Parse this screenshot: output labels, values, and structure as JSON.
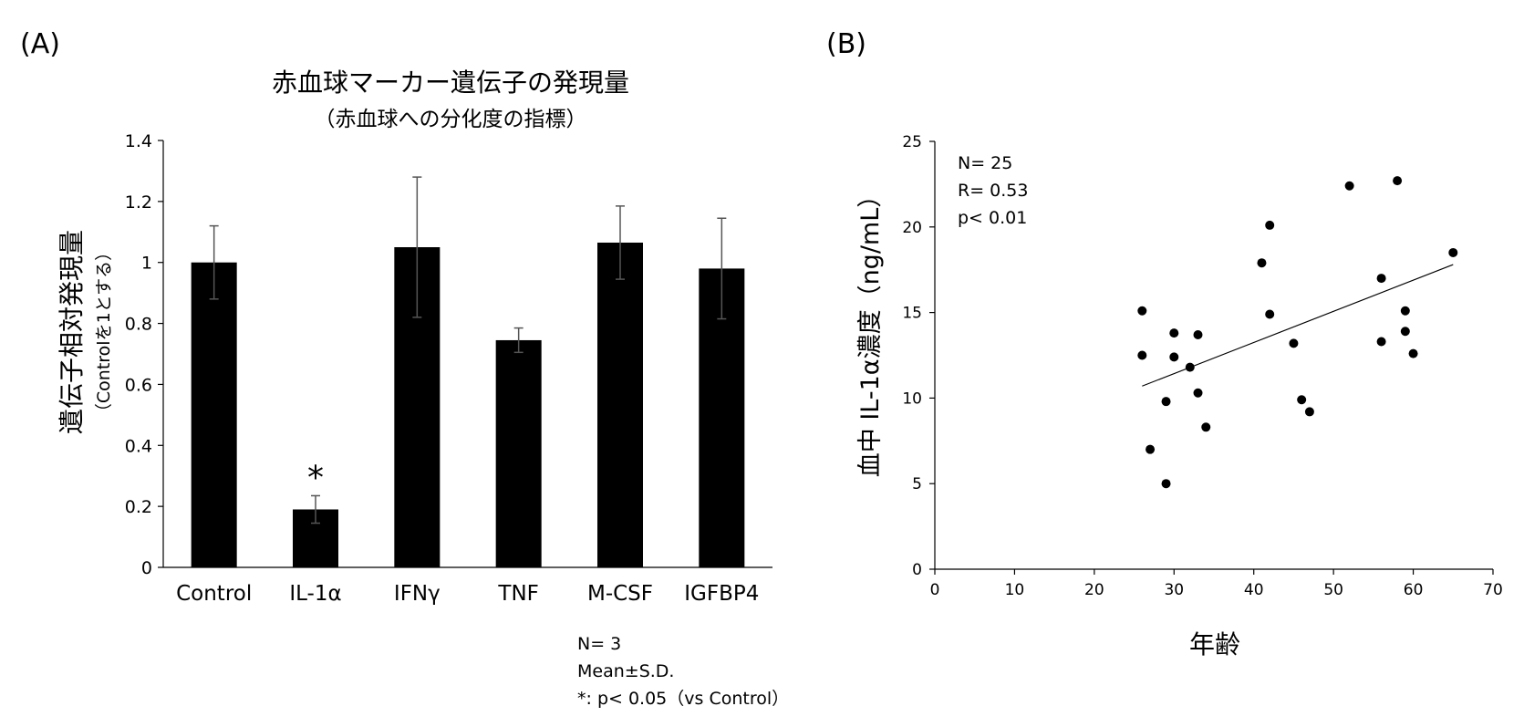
{
  "chart_data": [
    {
      "panel_label": "(A)",
      "type": "bar",
      "title": "赤血球マーカー遺伝子の発現量",
      "subtitle": "（赤血球への分化度の指標）",
      "ylabel": "遺伝子相対発現量",
      "ylabel_sub": "（Controlを1とする）",
      "xlabel": "",
      "ylim": [
        0,
        1.4
      ],
      "yticks": [
        0,
        0.2,
        0.4,
        0.6,
        0.8,
        1,
        1.2,
        1.4
      ],
      "ytick_labels": [
        "0",
        "0.2",
        "0.4",
        "0.6",
        "0.8",
        "1",
        "1.2",
        "1.4"
      ],
      "categories": [
        "Control",
        "IL-1α",
        "IFNγ",
        "TNF",
        "M-CSF",
        "IGFBP4"
      ],
      "values": [
        1.0,
        0.19,
        1.05,
        0.745,
        1.065,
        0.98
      ],
      "errors": [
        0.12,
        0.045,
        0.23,
        0.04,
        0.12,
        0.165
      ],
      "significance": [
        "",
        "*",
        "",
        "",
        "",
        ""
      ],
      "notes": [
        "N= 3",
        "Mean±S.D.",
        "*: p< 0.05（vs Control）"
      ]
    },
    {
      "panel_label": "(B)",
      "type": "scatter",
      "xlabel": "年齢",
      "ylabel": "血中 IL-1α濃度（ng/mL）",
      "xlim": [
        0,
        70
      ],
      "ylim": [
        0,
        25
      ],
      "xticks": [
        0,
        10,
        20,
        30,
        40,
        50,
        60,
        70
      ],
      "xtick_labels": [
        "0",
        "10",
        "20",
        "30",
        "40",
        "50",
        "60",
        "70"
      ],
      "yticks": [
        0,
        5,
        10,
        15,
        20,
        25
      ],
      "ytick_labels": [
        "0",
        "5",
        "10",
        "15",
        "20",
        "25"
      ],
      "points": [
        [
          26,
          15.1
        ],
        [
          26,
          12.5
        ],
        [
          27,
          7.0
        ],
        [
          29,
          5.0
        ],
        [
          29,
          9.8
        ],
        [
          30,
          13.8
        ],
        [
          30,
          12.4
        ],
        [
          32,
          11.8
        ],
        [
          33,
          13.7
        ],
        [
          33,
          10.3
        ],
        [
          34,
          8.3
        ],
        [
          41,
          17.9
        ],
        [
          42,
          20.1
        ],
        [
          42,
          14.9
        ],
        [
          45,
          13.2
        ],
        [
          46,
          9.9
        ],
        [
          47,
          9.2
        ],
        [
          52,
          22.4
        ],
        [
          56,
          17.0
        ],
        [
          56,
          13.3
        ],
        [
          58,
          22.7
        ],
        [
          59,
          15.1
        ],
        [
          59,
          13.9
        ],
        [
          60,
          12.6
        ],
        [
          65,
          18.5
        ]
      ],
      "trendline": {
        "x": [
          26,
          65
        ],
        "y": [
          10.7,
          17.8
        ]
      },
      "annotations": [
        "N= 25",
        "R= 0.53",
        "p< 0.01"
      ]
    }
  ]
}
